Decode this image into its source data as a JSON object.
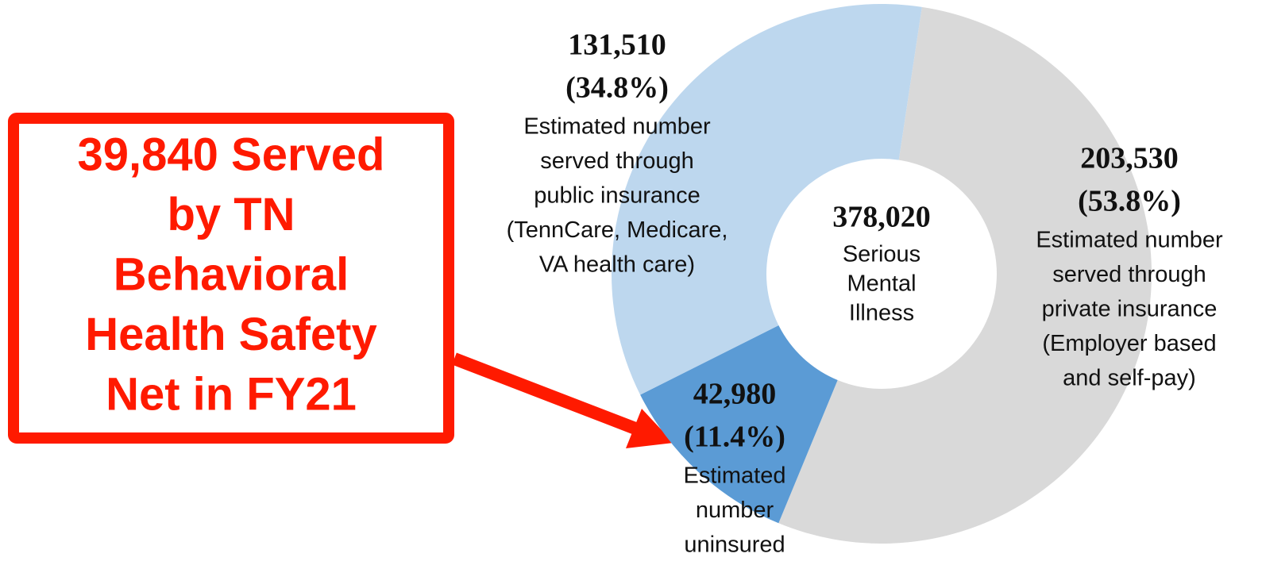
{
  "chart_data": {
    "type": "donut",
    "categories": [
      "private insurance",
      "uninsured",
      "public insurance"
    ],
    "values": [
      203530,
      42980,
      131510
    ],
    "value_labels": [
      "203,530",
      "42,980",
      "131,510"
    ],
    "percent_labels": [
      "(53.8%)",
      "(11.4%)",
      "(34.8%)"
    ],
    "descriptions": [
      [
        "Estimated number",
        "served through",
        "private insurance",
        "(Employer based",
        "and self-pay)"
      ],
      [
        "Estimated",
        "number",
        "uninsured"
      ],
      [
        "Estimated number",
        "served through",
        "public insurance",
        "(TennCare, Medicare,",
        "VA health care)"
      ]
    ],
    "colors": [
      "#d9d9d9",
      "#5b9bd5",
      "#bdd7ee"
    ],
    "center_total": "378,020",
    "center_label": [
      "Serious",
      "Mental",
      "Illness"
    ],
    "callout": [
      "39,840 Served",
      "by TN",
      "Behavioral",
      "Health Safety",
      "Net in FY21"
    ]
  }
}
